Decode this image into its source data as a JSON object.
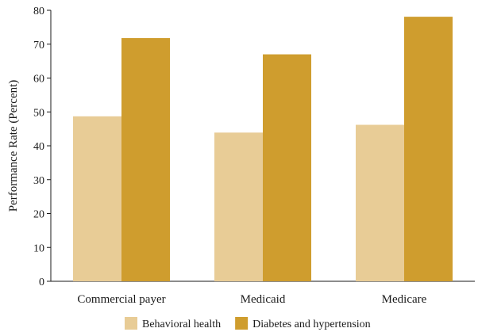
{
  "chart_data": {
    "type": "bar",
    "title": "",
    "xlabel": "",
    "ylabel": "Performance Rate (Percent)",
    "ylim": [
      0,
      80
    ],
    "yticks": [
      0,
      10,
      20,
      30,
      40,
      50,
      60,
      70,
      80
    ],
    "categories": [
      "Commercial payer",
      "Medicaid",
      "Medicare"
    ],
    "series": [
      {
        "name": "Behavioral health",
        "values": [
          48.7,
          43.9,
          46.2
        ],
        "color": "#e8cc96"
      },
      {
        "name": "Diabetes and hypertension",
        "values": [
          71.8,
          67.0,
          78.1
        ],
        "color": "#cf9d2e"
      }
    ],
    "grid": false,
    "legend": "bottom"
  }
}
